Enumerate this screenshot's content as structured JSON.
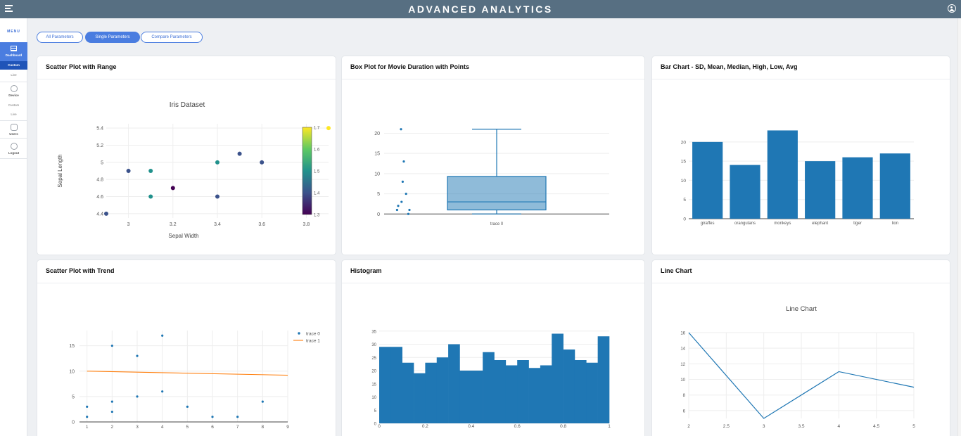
{
  "header": {
    "title": "ADVANCED ANALYTICS"
  },
  "sidebar": {
    "menu_label": "MENU",
    "dashboard": "Dashboard",
    "dashboard_custom": "Custom",
    "dashboard_live": "Live",
    "device": "Device",
    "device_custom": "Custom",
    "device_live": "Live",
    "users": "Users",
    "logout": "Logout"
  },
  "tabs": [
    {
      "label": "All Parameters",
      "active": false
    },
    {
      "label": "Single Parameters",
      "active": true
    },
    {
      "label": "Compare Parameters",
      "active": false
    }
  ],
  "colors": {
    "accent": "#4a7de0",
    "bar": "#1f77b4",
    "trend": "#ff7f0e"
  },
  "cards": [
    {
      "title": "Scatter Plot with Range"
    },
    {
      "title": "Box Plot for Movie Duration with Points"
    },
    {
      "title": "Bar Chart - SD, Mean, Median, High, Low, Avg"
    },
    {
      "title": "Scatter Plot with Trend"
    },
    {
      "title": "Histogram"
    },
    {
      "title": "Line Chart"
    }
  ],
  "chart_data": [
    {
      "type": "scatter",
      "title": "Iris Dataset",
      "xlabel": "Sepal Width",
      "ylabel": "Sepal Length",
      "xlim": [
        2.9,
        3.9
      ],
      "ylim": [
        4.35,
        5.45
      ],
      "x_ticks": [
        "3",
        "3.2",
        "3.4",
        "3.6",
        "3.8"
      ],
      "y_ticks": [
        "4.4",
        "4.6",
        "4.8",
        "5",
        "5.2",
        "5.4"
      ],
      "colorscale": "viridis",
      "color_range": [
        1.3,
        1.7
      ],
      "color_ticks": [
        "1.3",
        "1.4",
        "1.5",
        "1.6",
        "1.7"
      ],
      "points": [
        {
          "x": 2.9,
          "y": 4.4,
          "c": 1.4
        },
        {
          "x": 3.0,
          "y": 4.9,
          "c": 1.4
        },
        {
          "x": 3.1,
          "y": 4.9,
          "c": 1.5
        },
        {
          "x": 3.1,
          "y": 4.6,
          "c": 1.5
        },
        {
          "x": 3.2,
          "y": 4.7,
          "c": 1.3
        },
        {
          "x": 3.4,
          "y": 5.0,
          "c": 1.5
        },
        {
          "x": 3.4,
          "y": 4.6,
          "c": 1.4
        },
        {
          "x": 3.5,
          "y": 5.1,
          "c": 1.4
        },
        {
          "x": 3.6,
          "y": 5.0,
          "c": 1.4
        },
        {
          "x": 3.9,
          "y": 5.4,
          "c": 1.7
        }
      ]
    },
    {
      "type": "box",
      "category": "trace 0",
      "ylim": [
        -1,
        22
      ],
      "y_ticks": [
        "0",
        "5",
        "10",
        "15",
        "20"
      ],
      "box": {
        "min": 0,
        "q1": 1,
        "median": 3,
        "q3": 9.3,
        "max": 21
      },
      "points": [
        {
          "offset": -0.5,
          "y": 21
        },
        {
          "offset": 0.0,
          "y": 13
        },
        {
          "offset": -0.2,
          "y": 8
        },
        {
          "offset": 0.4,
          "y": 5
        },
        {
          "offset": -0.4,
          "y": 3
        },
        {
          "offset": -1.0,
          "y": 2
        },
        {
          "offset": -1.2,
          "y": 1
        },
        {
          "offset": 1.0,
          "y": 1
        },
        {
          "offset": 0.8,
          "y": 0
        }
      ]
    },
    {
      "type": "bar",
      "categories": [
        "giraffes",
        "orangutans",
        "monkeys",
        "elephant",
        "tiger",
        "lion"
      ],
      "values": [
        20,
        14,
        23,
        15,
        16,
        17
      ],
      "ylim": [
        0,
        24
      ],
      "y_ticks": [
        "0",
        "5",
        "10",
        "15",
        "20"
      ]
    },
    {
      "type": "scatter",
      "xlim": [
        0.7,
        9
      ],
      "ylim": [
        0,
        18
      ],
      "x_ticks": [
        "1",
        "2",
        "3",
        "4",
        "5",
        "6",
        "7",
        "8",
        "9"
      ],
      "y_ticks": [
        "0",
        "5",
        "10",
        "15"
      ],
      "legend": "top-right",
      "series": [
        {
          "name": "trace 0",
          "mode": "markers",
          "x": [
            1,
            1,
            2,
            2,
            2,
            3,
            3,
            4,
            4,
            5,
            6,
            7,
            8
          ],
          "y": [
            1,
            3,
            2,
            4,
            15,
            5,
            13,
            6,
            17,
            3,
            1,
            1,
            4
          ]
        },
        {
          "name": "trace 1",
          "mode": "lines",
          "x": [
            1,
            9
          ],
          "y": [
            10,
            9.2
          ]
        }
      ]
    },
    {
      "type": "histogram",
      "xlim": [
        0,
        1
      ],
      "ylim": [
        0,
        36
      ],
      "x_ticks": [
        "0",
        "0.2",
        "0.4",
        "0.6",
        "0.8",
        "1"
      ],
      "y_ticks": [
        "0",
        "5",
        "10",
        "15",
        "20",
        "25",
        "30",
        "35"
      ],
      "bin_width": 0.05,
      "counts": [
        29,
        29,
        23,
        19,
        23,
        25,
        30,
        20,
        20,
        27,
        24,
        22,
        24,
        21,
        22,
        34,
        28,
        24,
        23,
        33
      ]
    },
    {
      "type": "line",
      "title": "Line Chart",
      "xlim": [
        2,
        5
      ],
      "ylim": [
        5,
        16
      ],
      "x_ticks": [
        "2",
        "2.5",
        "3",
        "3.5",
        "4",
        "4.5",
        "5"
      ],
      "y_ticks": [
        "6",
        "8",
        "10",
        "12",
        "14",
        "16"
      ],
      "x": [
        2,
        3,
        4,
        5
      ],
      "y": [
        16,
        5,
        11,
        9
      ]
    }
  ]
}
